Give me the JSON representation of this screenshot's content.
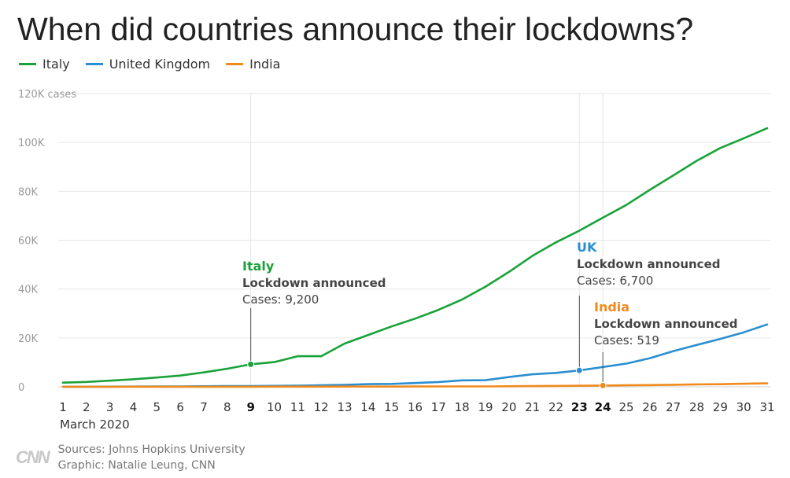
{
  "title": "When did countries announce their lockdowns?",
  "colors": {
    "italy": "#1aa23a",
    "uk": "#2a8fd0",
    "india": "#f08a1c",
    "grid": "#e6e6e6",
    "axis_text": "#9a9a9a"
  },
  "chart_data": {
    "type": "line",
    "x_label": "March 2020",
    "x": [
      1,
      2,
      3,
      4,
      5,
      6,
      7,
      8,
      9,
      10,
      11,
      12,
      13,
      14,
      15,
      16,
      17,
      18,
      19,
      20,
      21,
      22,
      23,
      24,
      25,
      26,
      27,
      28,
      29,
      30,
      31
    ],
    "x_bold": [
      9,
      23,
      24
    ],
    "ylim": [
      0,
      120000
    ],
    "y_ticks": [
      0,
      20000,
      40000,
      60000,
      80000,
      100000,
      120000
    ],
    "y_tick_labels": [
      "0",
      "20K",
      "40K",
      "60K",
      "80K",
      "100K",
      "120K cases"
    ],
    "series": [
      {
        "name": "Italy",
        "color_key": "italy",
        "values": [
          1700,
          2000,
          2500,
          3100,
          3800,
          4600,
          5900,
          7400,
          9200,
          10100,
          12500,
          12500,
          17700,
          21200,
          24700,
          27900,
          31500,
          35700,
          41000,
          47000,
          53600,
          59100,
          63900,
          69200,
          74400,
          80600,
          86500,
          92500,
          97700,
          101700,
          105800
        ]
      },
      {
        "name": "United Kingdom",
        "color_key": "uk",
        "values": [
          40,
          40,
          50,
          90,
          120,
          160,
          210,
          280,
          320,
          380,
          460,
          600,
          800,
          1100,
          1200,
          1550,
          1950,
          2650,
          2700,
          4000,
          5100,
          5700,
          6700,
          8100,
          9500,
          11700,
          14600,
          17100,
          19600,
          22300,
          25500
        ]
      },
      {
        "name": "India",
        "color_key": "india",
        "values": [
          3,
          5,
          6,
          28,
          30,
          31,
          34,
          39,
          43,
          50,
          60,
          74,
          81,
          84,
          110,
          114,
          137,
          151,
          173,
          223,
          283,
          360,
          434,
          519,
          606,
          694,
          835,
          985,
          1060,
          1250,
          1400
        ]
      }
    ],
    "annotations": [
      {
        "series_index": 0,
        "x": 9,
        "label": "Italy",
        "line1": "Lockdown announced",
        "line2": "Cases: 9,200"
      },
      {
        "series_index": 1,
        "x": 23,
        "label": "UK",
        "line1": "Lockdown announced",
        "line2": "Cases: 6,700"
      },
      {
        "series_index": 2,
        "x": 24,
        "label": "India",
        "line1": "Lockdown announced",
        "line2": "Cases: 519"
      }
    ]
  },
  "footer": {
    "logo": "CNN",
    "source": "Sources: Johns Hopkins University",
    "credit": "Graphic: Natalie Leung, CNN"
  }
}
